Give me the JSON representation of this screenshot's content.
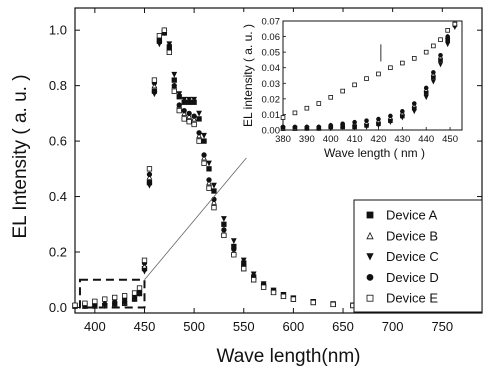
{
  "chart_data": [
    {
      "type": "scatter",
      "xlabel": "Wave length(nm)",
      "ylabel": "EL Intensity ( a. u. )",
      "xlim": [
        380,
        790
      ],
      "ylim": [
        -0.02,
        1.08
      ],
      "xticks": [
        400,
        450,
        500,
        550,
        600,
        650,
        700,
        750
      ],
      "yticks": [
        0.0,
        0.2,
        0.4,
        0.6,
        0.8,
        1.0
      ],
      "ytick_labels": [
        "0.0",
        "0.2",
        "0.4",
        "0.6",
        "0.8",
        "1.0"
      ],
      "legend_position": "right",
      "legend": [
        "Device A",
        "Device B",
        "Device C",
        "Device D",
        "Device E"
      ],
      "series": [
        {
          "name": "Device A",
          "marker": "square-filled",
          "x": [
            380,
            390,
            400,
            410,
            420,
            430,
            440,
            445,
            450,
            455,
            460,
            465,
            470,
            475,
            480,
            485,
            490,
            495,
            500,
            505,
            510,
            515,
            520,
            530,
            540,
            550,
            560,
            570,
            580,
            590,
            600,
            620,
            640,
            660,
            680,
            700,
            720,
            740,
            760,
            780
          ],
          "y": [
            0.005,
            0.005,
            0.005,
            0.006,
            0.008,
            0.015,
            0.03,
            0.05,
            0.14,
            0.45,
            0.78,
            0.96,
            0.99,
            0.94,
            0.82,
            0.76,
            0.74,
            0.74,
            0.74,
            0.68,
            0.6,
            0.5,
            0.42,
            0.3,
            0.22,
            0.16,
            0.11,
            0.08,
            0.06,
            0.045,
            0.033,
            0.02,
            0.012,
            0.008,
            0.005,
            0.003,
            0.002,
            0.001,
            0.001,
            0.0
          ]
        },
        {
          "name": "Device B",
          "marker": "triangle-open",
          "x": [
            380,
            390,
            400,
            410,
            420,
            430,
            440,
            445,
            450,
            455,
            460,
            465,
            470,
            475,
            480,
            485,
            490,
            495,
            500,
            505,
            510,
            515,
            520,
            530,
            540,
            550,
            560,
            570,
            580,
            590,
            600,
            620,
            640,
            660,
            680,
            700,
            720,
            740,
            760,
            780
          ],
          "y": [
            0.005,
            0.005,
            0.006,
            0.008,
            0.01,
            0.018,
            0.035,
            0.055,
            0.15,
            0.47,
            0.8,
            0.97,
            1.0,
            0.93,
            0.8,
            0.73,
            0.7,
            0.69,
            0.68,
            0.62,
            0.54,
            0.45,
            0.38,
            0.27,
            0.2,
            0.14,
            0.1,
            0.075,
            0.055,
            0.04,
            0.03,
            0.018,
            0.011,
            0.007,
            0.004,
            0.003,
            0.002,
            0.001,
            0.001,
            0.0
          ]
        },
        {
          "name": "Device C",
          "marker": "triangle-down-filled",
          "x": [
            380,
            390,
            400,
            410,
            420,
            430,
            440,
            445,
            450,
            455,
            460,
            465,
            470,
            475,
            480,
            485,
            490,
            495,
            500,
            505,
            510,
            515,
            520,
            530,
            540,
            550,
            560,
            570,
            580,
            590,
            600,
            620,
            640,
            660,
            680,
            700,
            720,
            740,
            760,
            780
          ],
          "y": [
            0.005,
            0.005,
            0.005,
            0.006,
            0.008,
            0.015,
            0.03,
            0.05,
            0.13,
            0.44,
            0.77,
            0.95,
            0.99,
            0.95,
            0.84,
            0.77,
            0.75,
            0.75,
            0.75,
            0.7,
            0.62,
            0.52,
            0.44,
            0.32,
            0.24,
            0.17,
            0.12,
            0.085,
            0.062,
            0.046,
            0.034,
            0.021,
            0.013,
            0.008,
            0.005,
            0.003,
            0.002,
            0.001,
            0.001,
            0.0
          ]
        },
        {
          "name": "Device D",
          "marker": "circle-filled",
          "x": [
            380,
            390,
            400,
            410,
            420,
            430,
            440,
            445,
            450,
            455,
            460,
            465,
            470,
            475,
            480,
            485,
            490,
            495,
            500,
            505,
            510,
            515,
            520,
            530,
            540,
            550,
            560,
            570,
            580,
            590,
            600,
            620,
            640,
            660,
            680,
            700,
            720,
            740,
            760,
            780
          ],
          "y": [
            0.005,
            0.006,
            0.008,
            0.012,
            0.02,
            0.03,
            0.045,
            0.065,
            0.16,
            0.48,
            0.81,
            0.97,
            1.0,
            0.93,
            0.8,
            0.73,
            0.71,
            0.7,
            0.69,
            0.63,
            0.55,
            0.46,
            0.39,
            0.28,
            0.21,
            0.15,
            0.105,
            0.078,
            0.058,
            0.043,
            0.032,
            0.02,
            0.012,
            0.008,
            0.005,
            0.003,
            0.002,
            0.001,
            0.001,
            0.0
          ]
        },
        {
          "name": "Device E",
          "marker": "square-open",
          "x": [
            380,
            390,
            400,
            410,
            420,
            430,
            440,
            445,
            450,
            455,
            460,
            465,
            470,
            475,
            480,
            485,
            490,
            495,
            500,
            505,
            510,
            515,
            520,
            530,
            540,
            550,
            560,
            570,
            580,
            590,
            600,
            620,
            640,
            660,
            680,
            700,
            720,
            740,
            760,
            780
          ],
          "y": [
            0.008,
            0.015,
            0.022,
            0.03,
            0.036,
            0.042,
            0.052,
            0.07,
            0.17,
            0.5,
            0.82,
            0.98,
            1.0,
            0.92,
            0.78,
            0.71,
            0.68,
            0.67,
            0.66,
            0.6,
            0.52,
            0.43,
            0.36,
            0.26,
            0.19,
            0.14,
            0.1,
            0.073,
            0.054,
            0.04,
            0.03,
            0.018,
            0.011,
            0.007,
            0.004,
            0.003,
            0.002,
            0.001,
            0.001,
            0.0
          ]
        }
      ],
      "highlight_region": {
        "x": [
          385,
          450
        ],
        "y": [
          0.0,
          0.1
        ]
      }
    },
    {
      "type": "scatter",
      "role": "inset",
      "xlabel": "Wave length ( nm )",
      "ylabel": "EL intensity ( a. u. )",
      "xlim": [
        380,
        455
      ],
      "ylim": [
        0.0,
        0.07
      ],
      "xticks": [
        380,
        390,
        400,
        410,
        420,
        430,
        440,
        450
      ],
      "yticks": [
        0.0,
        0.01,
        0.02,
        0.03,
        0.04,
        0.05,
        0.06,
        0.07
      ],
      "ytick_labels": [
        "0.00",
        "0.01",
        "0.02",
        "0.03",
        "0.04",
        "0.05",
        "0.06",
        "0.07"
      ],
      "annotation_marker_x": 421,
      "series": [
        {
          "name": "Device A",
          "marker": "square-filled",
          "x": [
            380,
            385,
            390,
            395,
            400,
            405,
            410,
            415,
            420,
            425,
            430,
            435,
            440,
            443,
            446,
            449,
            452
          ],
          "y": [
            0.001,
            0.001,
            0.001,
            0.001,
            0.002,
            0.002,
            0.002,
            0.003,
            0.004,
            0.006,
            0.009,
            0.014,
            0.024,
            0.034,
            0.045,
            0.058,
            0.068
          ]
        },
        {
          "name": "Device B",
          "marker": "triangle-open",
          "x": [
            380,
            385,
            390,
            395,
            400,
            405,
            410,
            415,
            420,
            425,
            430,
            435,
            440,
            443,
            446,
            449,
            452
          ],
          "y": [
            0.001,
            0.001,
            0.002,
            0.002,
            0.003,
            0.003,
            0.004,
            0.005,
            0.006,
            0.008,
            0.011,
            0.016,
            0.026,
            0.036,
            0.047,
            0.06,
            0.068
          ]
        },
        {
          "name": "Device C",
          "marker": "triangle-down-filled",
          "x": [
            380,
            385,
            390,
            395,
            400,
            405,
            410,
            415,
            420,
            425,
            430,
            435,
            440,
            443,
            446,
            449,
            452
          ],
          "y": [
            0.001,
            0.001,
            0.001,
            0.001,
            0.001,
            0.002,
            0.002,
            0.002,
            0.003,
            0.005,
            0.008,
            0.012,
            0.021,
            0.031,
            0.042,
            0.055,
            0.066
          ]
        },
        {
          "name": "Device D",
          "marker": "circle-filled",
          "x": [
            380,
            385,
            390,
            395,
            400,
            405,
            410,
            415,
            420,
            425,
            430,
            435,
            440,
            443,
            446,
            449,
            452
          ],
          "y": [
            0.002,
            0.002,
            0.002,
            0.002,
            0.003,
            0.004,
            0.005,
            0.006,
            0.007,
            0.009,
            0.012,
            0.017,
            0.027,
            0.037,
            0.048,
            0.06,
            0.067
          ]
        },
        {
          "name": "Device E",
          "marker": "square-open",
          "x": [
            380,
            385,
            390,
            395,
            400,
            405,
            410,
            415,
            420,
            425,
            430,
            435,
            440,
            443,
            446,
            449,
            452
          ],
          "y": [
            0.008,
            0.011,
            0.014,
            0.017,
            0.021,
            0.025,
            0.029,
            0.033,
            0.036,
            0.04,
            0.043,
            0.046,
            0.05,
            0.054,
            0.058,
            0.064,
            0.068
          ]
        }
      ]
    }
  ]
}
